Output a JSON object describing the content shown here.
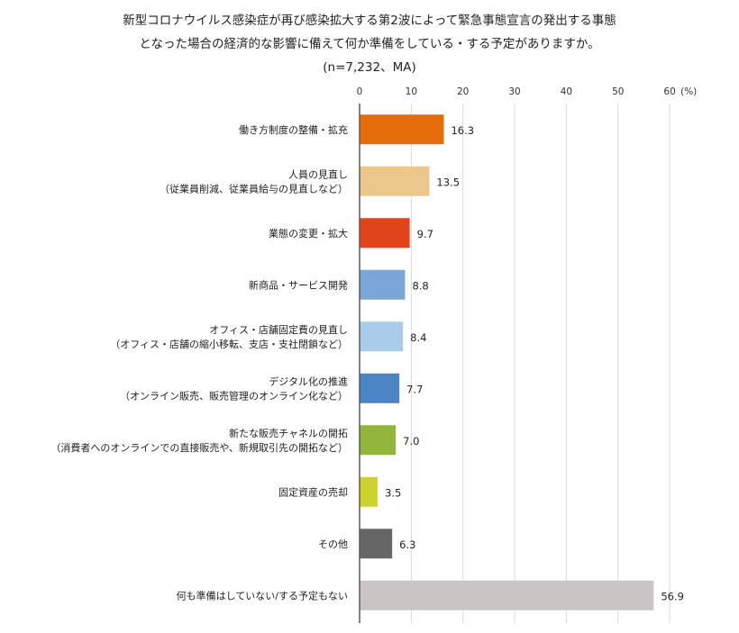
{
  "title_lines": [
    "新型コロナウイルス感染症が再び感染拡大する第2波によって緊急事態宣言の発出する事態",
    "となった場合の経済的な影響に備えて何か準備をしている・する予定がありますか。",
    "(n=7,232、MA)"
  ],
  "chart_data": {
    "type": "bar",
    "orientation": "horizontal",
    "unit_label": "(%)",
    "xlim": [
      0,
      60
    ],
    "ticks": [
      "0",
      "10",
      "20",
      "30",
      "40",
      "50",
      "60"
    ],
    "grid": true,
    "categories": [
      {
        "lines": [
          "働き方制度の整備・拡充"
        ],
        "value": 16.3,
        "label": "16.3",
        "color": "#E46C0A"
      },
      {
        "lines": [
          "人員の見直し",
          "（従業員削減、従業員給与の見直しなど）"
        ],
        "value": 13.5,
        "label": "13.5",
        "color": "#EBC78C"
      },
      {
        "lines": [
          "業態の変更・拡大"
        ],
        "value": 9.7,
        "label": "9.7",
        "color": "#E0441A"
      },
      {
        "lines": [
          "新商品・サービス開発"
        ],
        "value": 8.8,
        "label": "8.8",
        "color": "#7BA7D7"
      },
      {
        "lines": [
          "オフィス・店舗固定費の見直し",
          "（オフィス・店舗の縮小移転、支店・支社閉鎖など）"
        ],
        "value": 8.4,
        "label": "8.4",
        "color": "#A9CCEB"
      },
      {
        "lines": [
          "デジタル化の推進",
          "（オンライン販売、販売管理のオンライン化など）"
        ],
        "value": 7.7,
        "label": "7.7",
        "color": "#4B84C4"
      },
      {
        "lines": [
          "新たな販売チャネルの開拓",
          "（消費者へのオンラインでの直接販売や、新規取引先の開拓など）"
        ],
        "value": 7.0,
        "label": "7.0",
        "color": "#92B63C"
      },
      {
        "lines": [
          "固定資産の売却"
        ],
        "value": 3.5,
        "label": "3.5",
        "color": "#CDD22E"
      },
      {
        "lines": [
          "その他"
        ],
        "value": 6.3,
        "label": "6.3",
        "color": "#666666"
      },
      {
        "lines": [
          "何も準備はしていない/する予定もない"
        ],
        "value": 56.9,
        "label": "56.9",
        "color": "#CAC5C5"
      }
    ]
  }
}
